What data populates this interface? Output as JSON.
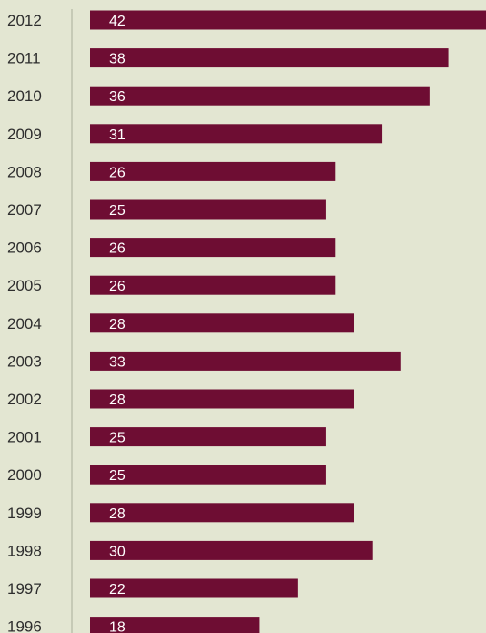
{
  "chart_data": {
    "type": "bar",
    "orientation": "horizontal",
    "categories": [
      "2012",
      "2011",
      "2010",
      "2009",
      "2008",
      "2007",
      "2006",
      "2005",
      "2004",
      "2003",
      "2002",
      "2001",
      "2000",
      "1999",
      "1998",
      "1997",
      "1996"
    ],
    "values": [
      42,
      38,
      36,
      31,
      26,
      25,
      26,
      26,
      28,
      33,
      28,
      25,
      25,
      28,
      30,
      22,
      18
    ],
    "title": "",
    "xlabel": "",
    "ylabel": "",
    "xlim": [
      0,
      42
    ],
    "grid": false,
    "bar_color": "#6e0d33",
    "background_color": "#e3e6d2",
    "axis_color": "#b4b7a3"
  }
}
